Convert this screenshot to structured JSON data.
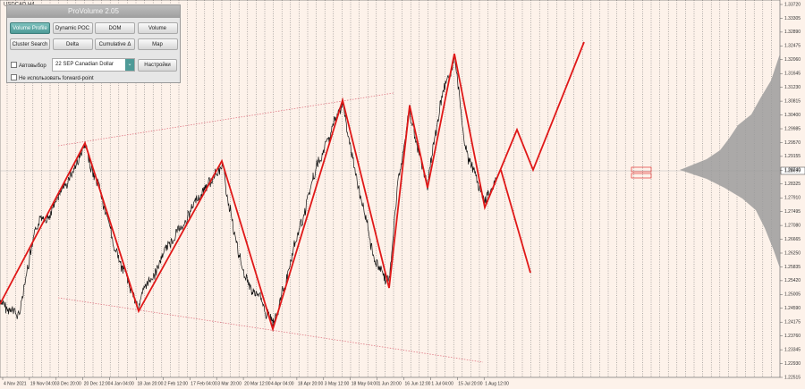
{
  "symbol": "USDCAD,H4",
  "panel": {
    "title": "ProVolume 2.05",
    "buttons": [
      "Volume Profile",
      "Dynamic POC",
      "DOM",
      "Volume",
      "Cluster Search",
      "Delta",
      "Cumulative Δ",
      "Map"
    ],
    "auto_select": "Автовыбор",
    "instrument": "22 SEP Canadian Dollar",
    "settings": "Настройки",
    "no_forward_point": "Не использовать forward-point"
  },
  "price_axis": [
    "1.33720",
    "1.33305",
    "1.32890",
    "1.32475",
    "1.32060",
    "1.31645",
    "1.31230",
    "1.30815",
    "1.30400",
    "1.29985",
    "1.29570",
    "1.29155",
    "1.28740",
    "1.28325",
    "1.27910",
    "1.27495",
    "1.27080",
    "1.26665",
    "1.26250",
    "1.25835",
    "1.25420",
    "1.25005",
    "1.24590",
    "1.24175",
    "1.23760",
    "1.23345",
    "1.22930",
    "1.22515"
  ],
  "current_price": "1.28699",
  "time_axis": [
    "4 Nov 2021",
    "19 Nov 04:00",
    "3 Dec 20:00",
    "20 Dec 12:00",
    "4 Jan 04:00",
    "18 Jan 20:00",
    "2 Feb 12:00",
    "17 Feb 04:00",
    "3 Mar 20:00",
    "20 Mar 12:00",
    "4 Apr 04:00",
    "18 Apr 20:00",
    "3 May 12:00",
    "18 May 04:00",
    "1 Jun 20:00",
    "16 Jun 12:00",
    "1 Jul 04:00",
    "15 Jul 20:00",
    "1 Aug 12:00"
  ]
}
